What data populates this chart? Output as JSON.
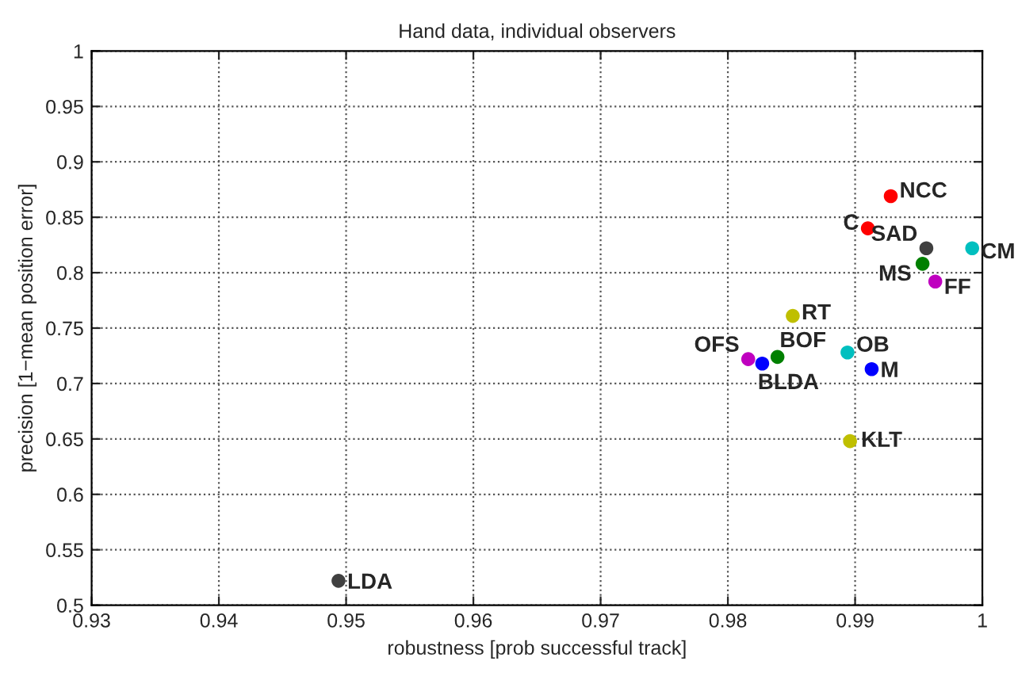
{
  "chart_data": {
    "type": "scatter",
    "title": "Hand data, individual observers",
    "xlabel": "robustness [prob successful track]",
    "ylabel": "precision [1−mean position error]",
    "xlim": [
      0.93,
      1
    ],
    "xticks": [
      0.93,
      0.94,
      0.95,
      0.96,
      0.97,
      0.98,
      0.99,
      1
    ],
    "ylim": [
      0.5,
      1
    ],
    "yticks": [
      0.5,
      0.55,
      0.6,
      0.65,
      0.7,
      0.75,
      0.8,
      0.85,
      0.9,
      0.95,
      1
    ],
    "grid": true,
    "legend": false,
    "marker": "circle",
    "series": [
      {
        "name": "NCC",
        "color": "#ff0000",
        "x": [
          0.9928
        ],
        "values": [
          0.869
        ]
      },
      {
        "name": "C",
        "color": "#ff0000",
        "x": [
          0.991
        ],
        "values": [
          0.84
        ]
      },
      {
        "name": "SAD",
        "color": "#404040",
        "x": [
          0.9956
        ],
        "values": [
          0.822
        ]
      },
      {
        "name": "CM",
        "color": "#00bfbf",
        "x": [
          0.9992
        ],
        "values": [
          0.822
        ]
      },
      {
        "name": "MS",
        "color": "#008000",
        "x": [
          0.9953
        ],
        "values": [
          0.808
        ]
      },
      {
        "name": "FF",
        "color": "#bf00bf",
        "x": [
          0.9963
        ],
        "values": [
          0.792
        ]
      },
      {
        "name": "RT",
        "color": "#bfbf00",
        "x": [
          0.9851
        ],
        "values": [
          0.761
        ]
      },
      {
        "name": "OFS",
        "color": "#bf00bf",
        "x": [
          0.9816
        ],
        "values": [
          0.722
        ]
      },
      {
        "name": "BLDA",
        "color": "#0000ff",
        "x": [
          0.9827
        ],
        "values": [
          0.718
        ]
      },
      {
        "name": "BOF",
        "color": "#008000",
        "x": [
          0.9839
        ],
        "values": [
          0.724
        ]
      },
      {
        "name": "OB",
        "color": "#00bfbf",
        "x": [
          0.9894
        ],
        "values": [
          0.728
        ]
      },
      {
        "name": "M",
        "color": "#0000ff",
        "x": [
          0.9913
        ],
        "values": [
          0.713
        ]
      },
      {
        "name": "KLT",
        "color": "#bfbf00",
        "x": [
          0.9896
        ],
        "values": [
          0.648
        ]
      },
      {
        "name": "LDA",
        "color": "#404040",
        "x": [
          0.9494
        ],
        "values": [
          0.522
        ]
      }
    ]
  }
}
